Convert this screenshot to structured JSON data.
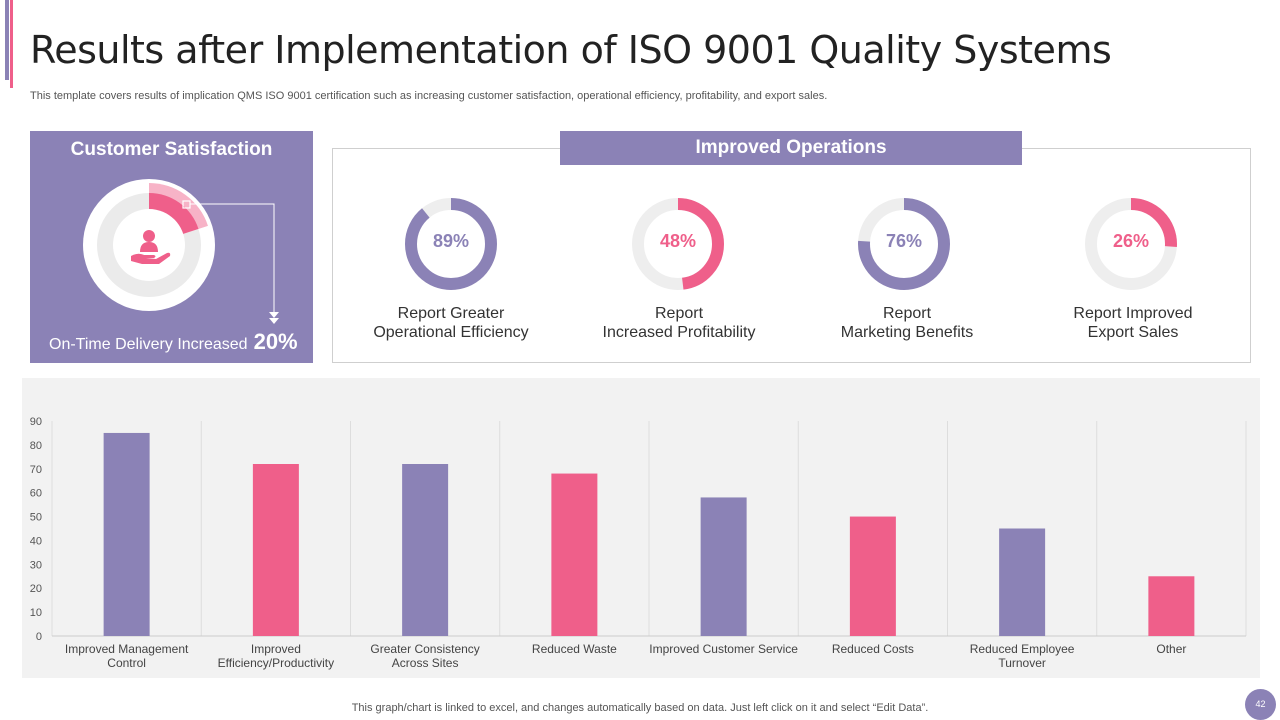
{
  "title": "Results after Implementation of ISO 9001 Quality Systems",
  "subtitle": "This template covers results of implication QMS ISO 9001 certification such as increasing customer satisfaction, operational efficiency, profitability, and export sales.",
  "customer_satisfaction": {
    "title": "Customer Satisfaction",
    "label": "On-Time Delivery Increased",
    "value": "20%",
    "fraction": 0.2,
    "icon": "hand-person-icon"
  },
  "improved_operations": {
    "title": "Improved Operations",
    "items": [
      {
        "pct_label": "89%",
        "value": 89,
        "line1": "Report Greater",
        "line2": "Operational Efficiency",
        "color": "#8b82b6"
      },
      {
        "pct_label": "48%",
        "value": 48,
        "line1": "Report",
        "line2": "Increased Profitability",
        "color": "#ef5f8a"
      },
      {
        "pct_label": "76%",
        "value": 76,
        "line1": "Report",
        "line2": "Marketing Benefits",
        "color": "#8b82b6"
      },
      {
        "pct_label": "26%",
        "value": 26,
        "line1": "Report Improved",
        "line2": "Export Sales",
        "color": "#ef5f8a"
      }
    ]
  },
  "chart_data": {
    "type": "bar",
    "categories": [
      [
        "Improved Management",
        "Control"
      ],
      [
        "Improved",
        "Efficiency/Productivity"
      ],
      [
        "Greater Consistency",
        "Across Sites"
      ],
      [
        "Reduced Waste"
      ],
      [
        "Improved Customer Service"
      ],
      [
        "Reduced Costs"
      ],
      [
        "Reduced Employee",
        "Turnover"
      ],
      [
        "Other"
      ]
    ],
    "values": [
      85,
      72,
      72,
      68,
      58,
      50,
      45,
      25
    ],
    "colors": [
      "#8b82b6",
      "#ef5f8a",
      "#8b82b6",
      "#ef5f8a",
      "#8b82b6",
      "#ef5f8a",
      "#8b82b6",
      "#ef5f8a"
    ],
    "yticks": [
      0,
      10,
      20,
      30,
      40,
      50,
      60,
      70,
      80,
      90
    ],
    "ylim": [
      0,
      90
    ],
    "title": "",
    "xlabel": "",
    "ylabel": ""
  },
  "footer_note": "This graph/chart is linked to excel,  and changes automatically based on data. Just left click on it and select “Edit Data”.",
  "page_number": "42",
  "colors": {
    "purple": "#8b82b6",
    "pink": "#ef5f8a",
    "track": "#eeeeee"
  }
}
